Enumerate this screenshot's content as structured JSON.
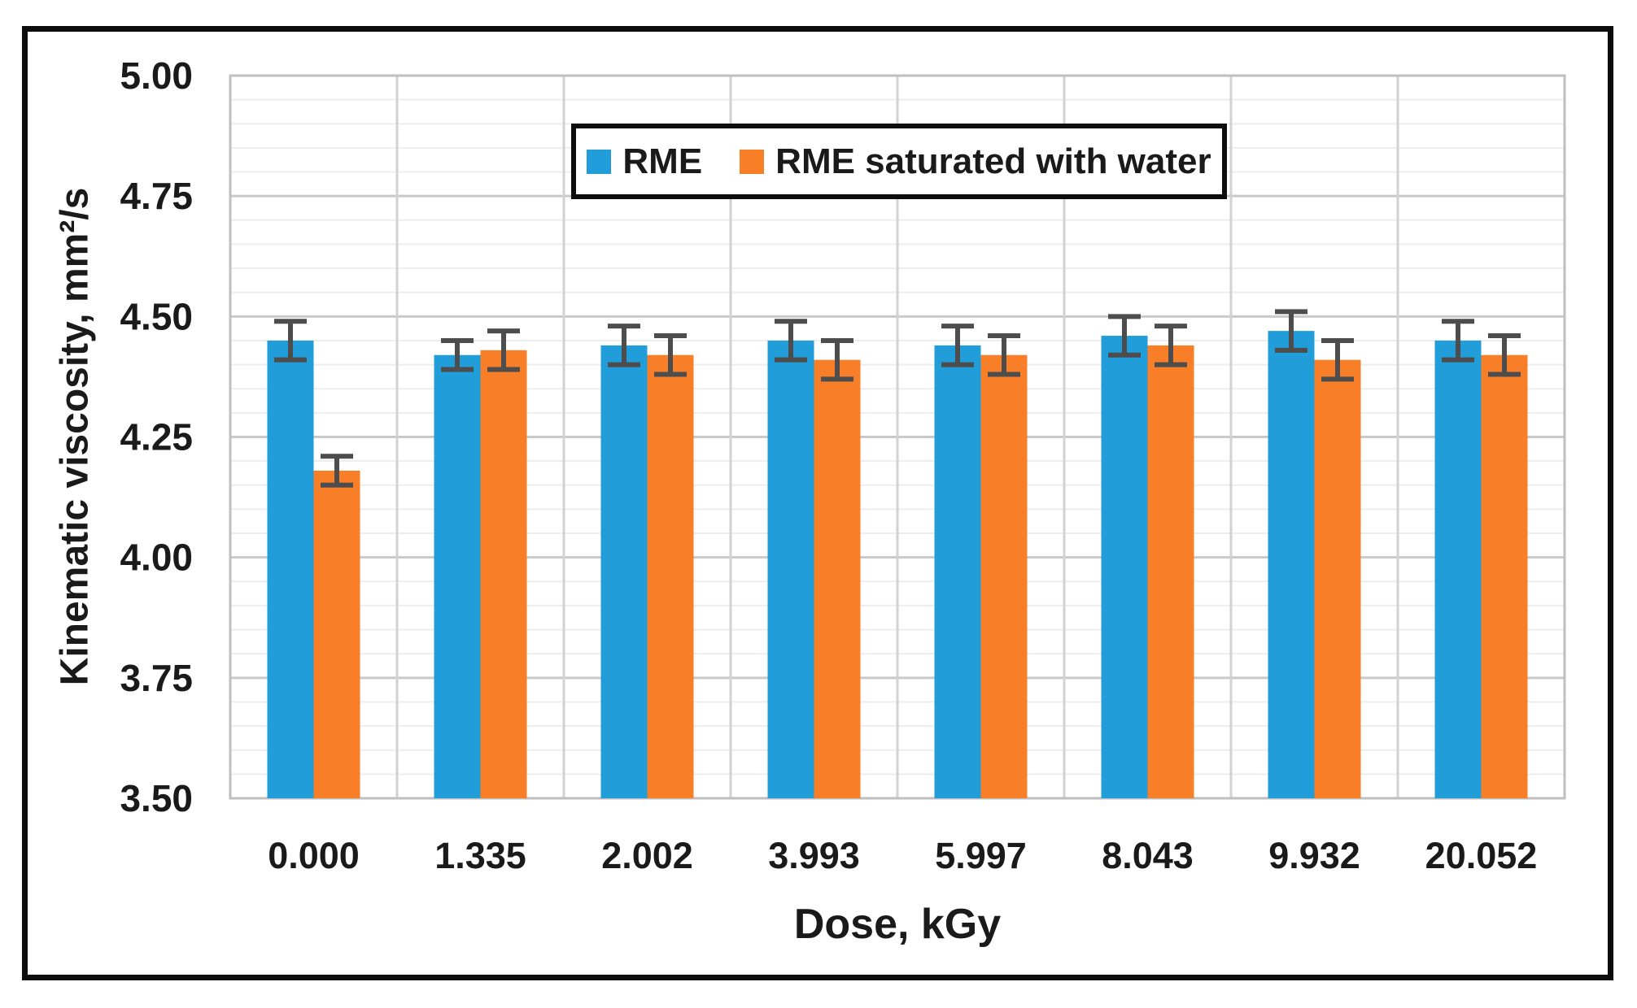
{
  "chart_data": {
    "type": "bar",
    "title": "",
    "xlabel": "Dose, kGy",
    "ylabel": "Kinematic viscosity, mm²/s",
    "categories": [
      "0.000",
      "1.335",
      "2.002",
      "3.993",
      "5.997",
      "8.043",
      "9.932",
      "20.052"
    ],
    "series": [
      {
        "name": "RME",
        "color": "#219ED9",
        "values": [
          4.45,
          4.42,
          4.44,
          4.45,
          4.44,
          4.46,
          4.47,
          4.45
        ],
        "errors": [
          0.04,
          0.03,
          0.04,
          0.04,
          0.04,
          0.04,
          0.04,
          0.04
        ]
      },
      {
        "name": "RME saturated with water",
        "color": "#F87E27",
        "values": [
          4.18,
          4.43,
          4.42,
          4.41,
          4.42,
          4.44,
          4.41,
          4.42
        ],
        "errors": [
          0.03,
          0.04,
          0.04,
          0.04,
          0.04,
          0.04,
          0.04,
          0.04
        ]
      }
    ],
    "ylim": [
      3.5,
      5.0
    ],
    "ytick_step": 0.25,
    "yminor_step": 0.05,
    "ytick_labels": [
      "3.50",
      "3.75",
      "4.00",
      "4.25",
      "4.50",
      "4.75",
      "5.00"
    ],
    "grid": "major-and-minor-horizontal-plus-category-verticals",
    "legend_position": "top-center-inside",
    "error_bar_color": "#4D4D4D"
  }
}
